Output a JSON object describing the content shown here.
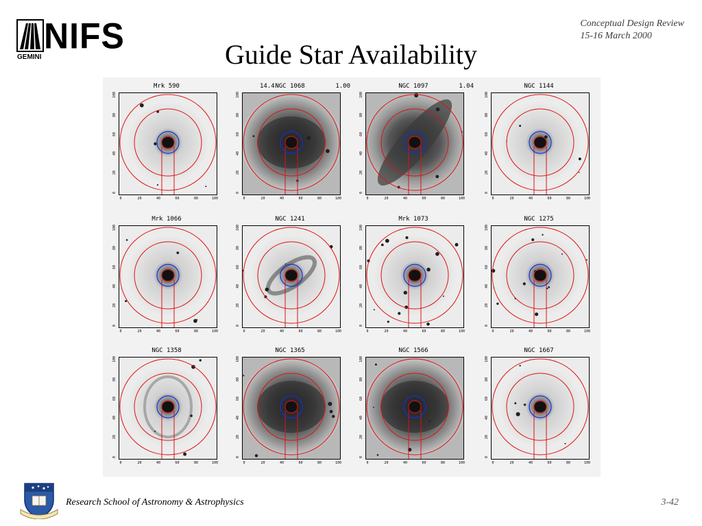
{
  "header": {
    "logo_text": "NIFS",
    "logo_subtext": "GEMINI",
    "review_line1": "Conceptual Design Review",
    "review_line2": "15-16 March 2000",
    "title": "Guide Star Availability"
  },
  "panels": [
    {
      "name": "Mrk 590",
      "left": "",
      "right": "",
      "style": "compact"
    },
    {
      "name": "NGC 1068",
      "left": "14.4",
      "right": "1.00",
      "style": "dark"
    },
    {
      "name": "NGC 1097",
      "left": "",
      "right": "1.04",
      "style": "bar"
    },
    {
      "name": "NGC 1144",
      "left": "",
      "right": "",
      "style": "compact"
    },
    {
      "name": "Mrk 1066",
      "left": "",
      "right": "",
      "style": "compact"
    },
    {
      "name": "NGC 1241",
      "left": "",
      "right": "",
      "style": "spiral"
    },
    {
      "name": "Mrk 1073",
      "left": "",
      "right": "",
      "style": "stars"
    },
    {
      "name": "NGC 1275",
      "left": "",
      "right": "",
      "style": "stars"
    },
    {
      "name": "NGC 1358",
      "left": "",
      "right": "",
      "style": "ring"
    },
    {
      "name": "NGC 1365",
      "left": "",
      "right": "",
      "style": "dark"
    },
    {
      "name": "NGC 1566",
      "left": "",
      "right": "",
      "style": "dark"
    },
    {
      "name": "NGC 1667",
      "left": "",
      "right": "",
      "style": "compact"
    }
  ],
  "ticks": {
    "x": [
      "0",
      "20",
      "40",
      "60",
      "80",
      "100"
    ],
    "y": [
      "0",
      "20",
      "40",
      "60",
      "80",
      "100"
    ]
  },
  "colors": {
    "field_circle": "#e01010",
    "inner_circle": "#1030e0"
  },
  "footer": {
    "institution": "Research School of Astronomy & Astrophysics",
    "page": "3-42"
  }
}
